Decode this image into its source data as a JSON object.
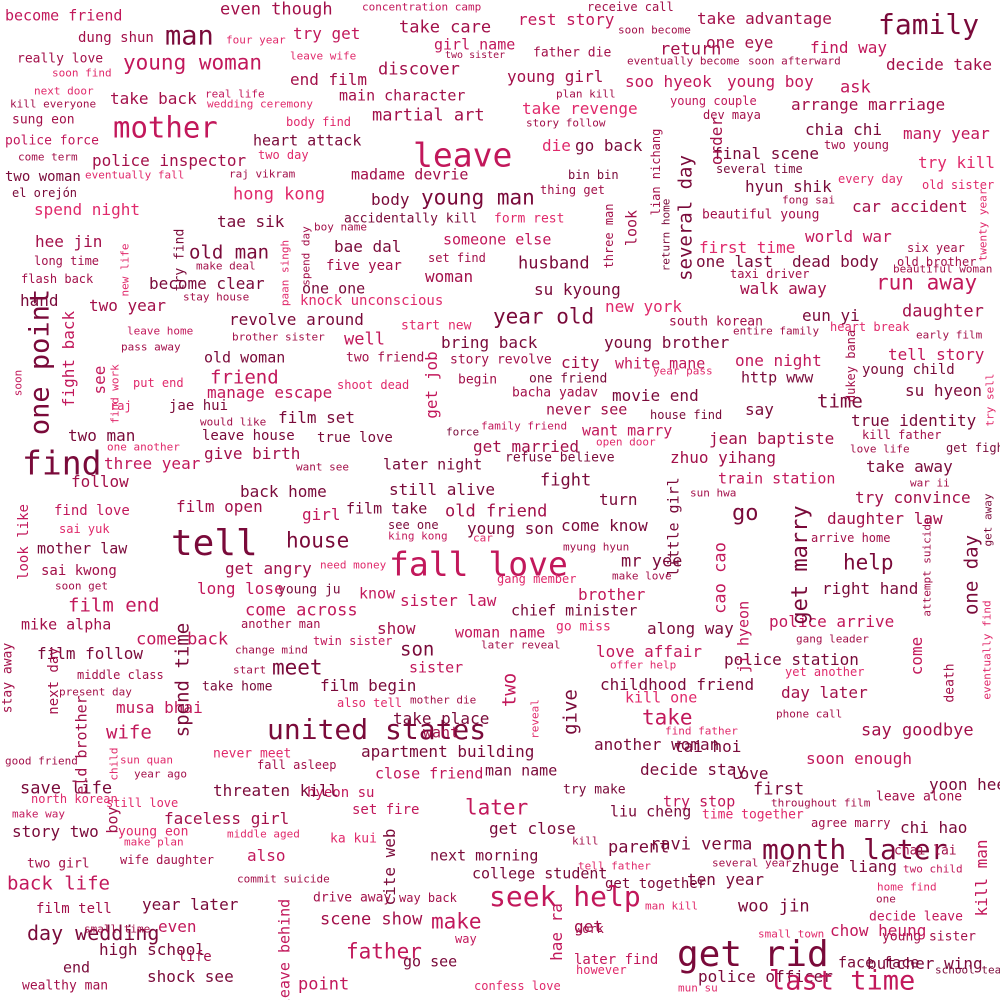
{
  "words": [
    "become friend",
    "even though",
    "concentration camp",
    "receive call",
    "take advantage",
    "family",
    "dung shun",
    "man",
    "four year",
    "try get",
    "rest story",
    "soon become",
    "one eye",
    "take care",
    "really love",
    "leave wife",
    "two sister",
    "father die",
    "eventually become",
    "soon afterward",
    "find way",
    "decide take",
    "soon find",
    "young woman",
    "girl name",
    "return",
    "end film",
    "discover",
    "young girl",
    "soo hyeok",
    "young boy",
    "next door",
    "real life",
    "plan kill",
    "ask",
    "kill everyone",
    "take back",
    "wedding ceremony",
    "main character",
    "young couple",
    "arrange marriage",
    "sung eon",
    "mother",
    "martial art",
    "take revenge",
    "dev maya",
    "police force",
    "body find",
    "story follow",
    "heart attack",
    "leave",
    "chia chi",
    "many year",
    "two day",
    "die",
    "go back",
    "two young",
    "come term",
    "police inspector",
    "final scene",
    "try kill",
    "two woman",
    "eventually fall",
    "raj vikram",
    "madame devrie",
    "bin bin",
    "several time",
    "el orejón",
    "hong kong",
    "thing get",
    "hyun shik",
    "every day",
    "old sister",
    "young man",
    "body",
    "fong sai",
    "spend night",
    "tae sik",
    "accidentally kill",
    "form rest",
    "beautiful young",
    "car accident",
    "boy name",
    "hee jin",
    "bae dal",
    "someone else",
    "world war",
    "long time",
    "make deal",
    "five year",
    "set find",
    "first time",
    "six year",
    "old man",
    "husband",
    "one last",
    "dead body",
    "old brother",
    "flash back",
    "woman",
    "beautiful woman",
    "one one",
    "become clear",
    "stay house",
    "su kyoung",
    "run away",
    "hand",
    "knock unconscious",
    "taxi driver",
    "two year",
    "new york",
    "south korean",
    "entire family",
    "revolve around",
    "year old",
    "walk away",
    "daughter",
    "start new",
    "eun yi",
    "leave home",
    "heart break",
    "early film",
    "brother sister",
    "well",
    "bring back",
    "young brother",
    "pass away",
    "old woman",
    "two friend",
    "story revolve",
    "white mane",
    "tell story",
    "one night",
    "young child",
    "friend",
    "city",
    "year pass",
    "http www",
    "put end",
    "shoot dead",
    "begin",
    "one friend",
    "su hyeon",
    "manage escape",
    "bacha yadav",
    "movie end",
    "time",
    "raj",
    "say",
    "jae hui",
    "would like",
    "never see",
    "house find",
    "true identity",
    "film set",
    "family friend",
    "want marry",
    "force",
    "kill father",
    "two man",
    "leave house",
    "true love",
    "open door",
    "jean baptiste",
    "one another",
    "get fight",
    "get married",
    "love life",
    "find",
    "three year",
    "give birth",
    "want see",
    "later night",
    "refuse believe",
    "zhuo yihang",
    "take away",
    "follow",
    "train station",
    "war ii",
    "fight",
    "back home",
    "still alive",
    "sun hwa",
    "try convince",
    "turn",
    "film open",
    "film take",
    "find love",
    "old friend",
    "go",
    "girl",
    "daughter law",
    "sai yuk",
    "see one",
    "young son",
    "come know",
    "tell",
    "house",
    "king kong",
    "car",
    "arrive home",
    "mother law",
    "fall love",
    "myung hyun",
    "mr yee",
    "need money",
    "help",
    "sai kwong",
    "make love",
    "soon get",
    "gang member",
    "get angry",
    "young ju",
    "long lose",
    "right hand",
    "know",
    "brother",
    "film end",
    "sister law",
    "chief minister",
    "mike alpha",
    "come across",
    "another man",
    "show",
    "police arrive",
    "go miss",
    "along way",
    "come back",
    "twin sister",
    "woman name",
    "gang leader",
    "film follow",
    "change mind",
    "later reveal",
    "love affair",
    "son",
    "middle class",
    "offer help",
    "meet",
    "start",
    "police station",
    "sister",
    "yet another",
    "take home",
    "childhood friend",
    "present day",
    "film begin",
    "day later",
    "kill one",
    "also tell",
    "mother die",
    "musa bhai",
    "united states",
    "take",
    "wife",
    "take place",
    "phone call",
    "say goodbye",
    "want",
    "find father",
    "never meet",
    "apartment building",
    "another woman",
    "tai hoi",
    "good friend",
    "sun quan",
    "fall asleep",
    "soon enough",
    "close friend",
    "year ago",
    "decide stay",
    "man name",
    "love",
    "save life",
    "later",
    "hyeon su",
    "threaten kill",
    "yoon hee",
    "first",
    "try make",
    "north korean",
    "still love",
    "set fire",
    "try stop",
    "leave alone",
    "throughout film",
    "liu cheng",
    "time together",
    "make way",
    "faceless girl",
    "middle aged",
    "agree marry",
    "story two",
    "young eon",
    "get close",
    "chi hao",
    "ka kui",
    "month later",
    "make plan",
    "kill",
    "ravi verma",
    "parent",
    "also",
    "next morning",
    "wife daughter",
    "two girl",
    "chai lai",
    "several year",
    "tell father",
    "zhuge liang",
    "two child",
    "back life",
    "commit suicide",
    "college student",
    "ten year",
    "home find",
    "get together",
    "seek help",
    "one",
    "film tell",
    "drive away",
    "way back",
    "woo jin",
    "year later",
    "decide leave",
    "scene show",
    "work",
    "man kill",
    "day wedding",
    "make",
    "get",
    "small time",
    "even",
    "young sister",
    "chow heung",
    "way",
    "high school",
    "small town",
    "get rid",
    "father",
    "life",
    "end",
    "go see",
    "later find",
    "shock see",
    "butcher wing",
    "point",
    "police officer",
    "last time",
    "however",
    "confess love",
    "mun su",
    "wealthy man",
    "school teacher",
    "face face",
    "one point",
    "see",
    "find work",
    "fight back",
    "try find",
    "paan singh",
    "spend day",
    "new life",
    "soon",
    "several day",
    "return home",
    "three man",
    "look",
    "lian nichang",
    "dukey bana",
    "get job",
    "spend time",
    "two",
    "give",
    "next day",
    "stay away",
    "eld brother",
    "boy",
    "child",
    "reveal",
    "little girl",
    "cao cao",
    "ji hyeon",
    "come",
    "get marry",
    "one day",
    "death",
    "eventually find",
    "attempt suicide",
    "get away",
    "twenty year",
    "try sell",
    "kill man",
    "cite web",
    "hae ra",
    "leave behind",
    "order",
    "look like"
  ],
  "palette": [
    "#c2185b",
    "#a3104a",
    "#7a0a3a",
    "#e0296b",
    "#b31450"
  ]
}
